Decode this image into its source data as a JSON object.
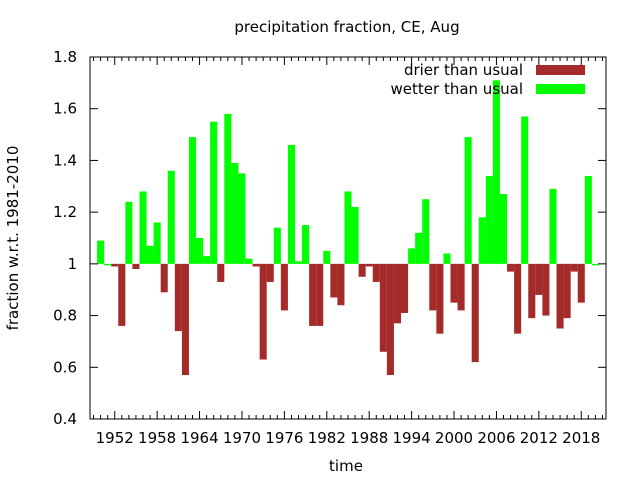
{
  "chart_data": {
    "type": "bar",
    "title": "precipitation fraction, CE, Aug",
    "xlabel": "time",
    "ylabel": "fraction w.r.t. 1981-2010",
    "xlim": [
      1948.5,
      2021.5
    ],
    "ylim": [
      0.4,
      1.8
    ],
    "baseline": 1.0,
    "yticks": [
      "0.4",
      "0.6",
      "0.8",
      "1",
      "1.2",
      "1.4",
      "1.6",
      "1.8"
    ],
    "xticks": [
      "1952",
      "1958",
      "1964",
      "1970",
      "1976",
      "1982",
      "1988",
      "1994",
      "2000",
      "2006",
      "2012",
      "2018"
    ],
    "legend_position": "top-right",
    "series": [
      {
        "name": "drier than usual",
        "color": "#a52a2a"
      },
      {
        "name": "wetter than usual",
        "color": "#00ff00"
      }
    ],
    "x": [
      1950,
      1951,
      1952,
      1953,
      1954,
      1955,
      1956,
      1957,
      1958,
      1959,
      1960,
      1961,
      1962,
      1963,
      1964,
      1965,
      1966,
      1967,
      1968,
      1969,
      1970,
      1971,
      1972,
      1973,
      1974,
      1975,
      1976,
      1977,
      1978,
      1979,
      1980,
      1981,
      1982,
      1983,
      1984,
      1985,
      1986,
      1987,
      1988,
      1989,
      1990,
      1991,
      1992,
      1993,
      1994,
      1995,
      1996,
      1997,
      1998,
      1999,
      2000,
      2001,
      2002,
      2003,
      2004,
      2005,
      2006,
      2007,
      2008,
      2009,
      2010,
      2011,
      2012,
      2013,
      2014,
      2015,
      2016,
      2017,
      2018,
      2019,
      2020
    ],
    "values": [
      1.09,
      1.0,
      0.99,
      0.76,
      1.24,
      0.98,
      1.28,
      1.07,
      1.16,
      0.89,
      1.36,
      0.74,
      0.57,
      1.49,
      1.1,
      1.03,
      1.55,
      0.93,
      1.58,
      1.39,
      1.35,
      1.02,
      0.99,
      0.63,
      0.93,
      1.14,
      0.82,
      1.46,
      1.01,
      1.15,
      0.76,
      0.76,
      1.05,
      0.87,
      0.84,
      1.28,
      1.22,
      0.95,
      0.99,
      0.93,
      0.66,
      0.57,
      0.77,
      0.81,
      1.06,
      1.12,
      1.25,
      0.82,
      0.73,
      1.04,
      0.85,
      0.82,
      1.49,
      0.62,
      1.18,
      1.34,
      1.71,
      1.27,
      0.97,
      0.73,
      1.57,
      0.79,
      0.88,
      0.8,
      1.29,
      0.75,
      0.79,
      0.97,
      0.85,
      1.34,
      1.0
    ]
  }
}
